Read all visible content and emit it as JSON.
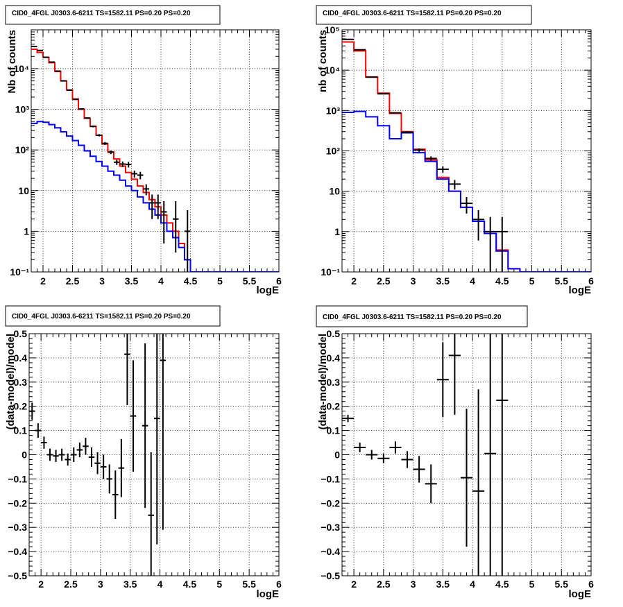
{
  "colors": {
    "total_model": "#ff0000",
    "component_model": "#0000ff",
    "data": "#000000",
    "grid": "#000000"
  },
  "chart_data": [
    {
      "type": "line",
      "title": "CID0_4FGL J0303.6-6211 TS=1582.11 PS=0.20 PS=0.20",
      "xlabel": "logE",
      "ylabel": "Nb of counts",
      "xlim": [
        1.8,
        6.0
      ],
      "ylim": [
        0.1,
        90000
      ],
      "yscale": "log",
      "grid": true,
      "xticks": [
        2,
        2.5,
        3,
        3.5,
        4,
        4.5,
        5,
        5.5,
        6
      ],
      "xtick_labels": [
        "2",
        "2.5",
        "3",
        "3.5",
        "4",
        "4.5",
        "5",
        "5.5",
        "6"
      ],
      "yticks": [
        0.1,
        1,
        10,
        100,
        1000,
        10000
      ],
      "ytick_labels": [
        "10⁻¹",
        "1",
        "10",
        "10²",
        "10³",
        "10⁴"
      ],
      "bin_edges": [
        1.8,
        1.9,
        2.0,
        2.1,
        2.2,
        2.3,
        2.4,
        2.5,
        2.6,
        2.7,
        2.8,
        2.9,
        3.0,
        3.1,
        3.2,
        3.3,
        3.4,
        3.5,
        3.6,
        3.7,
        3.8,
        3.9,
        4.0,
        4.1,
        4.2,
        4.3,
        4.4,
        4.5,
        4.6,
        4.7,
        4.8,
        4.9,
        5.0,
        5.1,
        5.2,
        5.3,
        5.4,
        5.5,
        5.6,
        5.7,
        5.8,
        5.9,
        6.0
      ],
      "series": [
        {
          "values": [
            30000,
            25000,
            19000,
            14000,
            8500,
            5000,
            3000,
            1800,
            1000,
            600,
            380,
            230,
            140,
            90,
            60,
            40,
            28,
            19,
            13,
            9,
            6,
            4,
            2.5,
            1.6,
            1.0,
            0.5,
            0.2,
            0.1,
            0.08,
            0.08,
            0.08,
            0.08,
            0.08,
            0.08,
            0.08,
            0.08,
            0.08,
            0.08,
            0.08,
            0.08,
            0.08,
            0.08
          ]
        },
        {
          "values": [
            450,
            500,
            480,
            420,
            350,
            280,
            220,
            170,
            130,
            95,
            70,
            52,
            40,
            30,
            24,
            18,
            13,
            10,
            7,
            5,
            3.5,
            2.5,
            1.6,
            1.0,
            0.7,
            0.4,
            0.2,
            0.1,
            0.08,
            0.08,
            0.08,
            0.08,
            0.08,
            0.08,
            0.08,
            0.08,
            0.08,
            0.08,
            0.08,
            0.08,
            0.08,
            0.08
          ]
        }
      ],
      "points": {
        "x": [
          1.85,
          1.95,
          2.05,
          2.15,
          2.25,
          2.35,
          2.45,
          2.55,
          2.65,
          2.75,
          2.85,
          2.95,
          3.05,
          3.15,
          3.25,
          3.35,
          3.45,
          3.55,
          3.65,
          3.75,
          3.85,
          3.95,
          4.05,
          4.25,
          4.45
        ],
        "xerr": 0.05,
        "y": [
          35000,
          28000,
          19000,
          14500,
          8700,
          5000,
          2950,
          1750,
          1020,
          610,
          380,
          230,
          145,
          88,
          50,
          45,
          44,
          26,
          24,
          11,
          5,
          5,
          3,
          2,
          1
        ],
        "yerr_low": [
          190,
          170,
          140,
          120,
          90,
          70,
          55,
          42,
          32,
          25,
          20,
          15,
          12,
          9,
          7,
          7,
          7,
          5,
          5,
          3.3,
          3,
          3,
          2.5,
          1.7,
          1
        ],
        "yerr_high": [
          190,
          170,
          140,
          120,
          90,
          70,
          55,
          42,
          32,
          25,
          20,
          15,
          12,
          9,
          7,
          7,
          7,
          5,
          5,
          3.3,
          3,
          3,
          2.5,
          3.5,
          2.3
        ]
      }
    },
    {
      "type": "line",
      "title": "CID0_4FGL J0303.6-6211 TS=1582.11 PS=0.20 PS=0.20",
      "xlabel": "logE",
      "ylabel": "nb of counts",
      "xlim": [
        1.8,
        6.0
      ],
      "ylim": [
        0.1,
        100000
      ],
      "yscale": "log",
      "grid": true,
      "xticks": [
        2,
        2.5,
        3,
        3.5,
        4,
        4.5,
        5,
        5.5,
        6
      ],
      "xtick_labels": [
        "2",
        "2.5",
        "3",
        "3.5",
        "4",
        "4.5",
        "5",
        "5.5",
        "6"
      ],
      "yticks": [
        0.1,
        1,
        10,
        100,
        1000,
        10000,
        100000
      ],
      "ytick_labels": [
        "10⁻¹",
        "1",
        "10",
        "10²",
        "10³",
        "10⁴",
        "10⁵"
      ],
      "bin_edges": [
        1.8,
        2.0,
        2.2,
        2.4,
        2.6,
        2.8,
        3.0,
        3.2,
        3.4,
        3.6,
        3.8,
        4.0,
        4.2,
        4.4,
        4.6,
        4.8,
        5.0,
        5.2,
        5.4,
        5.6,
        5.8,
        6.0
      ],
      "series": [
        {
          "values": [
            50000,
            30000,
            6800,
            2700,
            850,
            300,
            110,
            60,
            22,
            10,
            4,
            1.8,
            0.9,
            0.35,
            0.12,
            0.1,
            0.1,
            0.1,
            0.1,
            0.1,
            0.1
          ]
        },
        {
          "values": [
            900,
            950,
            700,
            420,
            200,
            280,
            90,
            55,
            20,
            10,
            4,
            1.8,
            0.9,
            0.33,
            0.12,
            0.1,
            0.1,
            0.1,
            0.1,
            0.1,
            0.1
          ]
        }
      ],
      "points": {
        "x": [
          1.9,
          2.1,
          2.3,
          2.5,
          2.7,
          2.9,
          3.1,
          3.3,
          3.5,
          3.7,
          3.9,
          4.1,
          4.3,
          4.5
        ],
        "xerr": 0.1,
        "y": [
          58000,
          32000,
          6700,
          2600,
          880,
          290,
          105,
          65,
          35,
          15,
          5,
          2,
          1,
          1
        ],
        "yerr_low": [
          240,
          180,
          82,
          51,
          30,
          17,
          10,
          8,
          6,
          4,
          2.2,
          1.4,
          0.94,
          0.99
        ],
        "yerr_high": [
          240,
          180,
          82,
          51,
          30,
          17,
          10,
          8,
          6,
          4,
          2.2,
          1.4,
          1.3,
          1.3
        ]
      }
    },
    {
      "type": "scatter",
      "title": "CID0_4FGL J0303.6-6211 TS=1582.11 PS=0.20 PS=0.20",
      "xlabel": "logE",
      "ylabel": "(data-model)/model",
      "xlim": [
        1.8,
        6.0
      ],
      "ylim": [
        -0.5,
        0.5
      ],
      "grid": true,
      "xticks": [
        2,
        2.5,
        3,
        3.5,
        4,
        4.5,
        5,
        5.5,
        6
      ],
      "xtick_labels": [
        "2",
        "2.5",
        "3",
        "3.5",
        "4",
        "4.5",
        "5",
        "5.5",
        "6"
      ],
      "yticks": [
        -0.5,
        -0.4,
        -0.3,
        -0.2,
        -0.1,
        0,
        0.1,
        0.2,
        0.3,
        0.4,
        0.5
      ],
      "ytick_labels": [
        "−0.5",
        "−0.4",
        "−0.3",
        "−0.2",
        "−0.1",
        "0",
        "0.1",
        "0.2",
        "0.3",
        "0.4",
        "0.5"
      ],
      "points": {
        "x": [
          1.85,
          1.95,
          2.05,
          2.15,
          2.25,
          2.35,
          2.45,
          2.55,
          2.65,
          2.75,
          2.85,
          2.95,
          3.05,
          3.15,
          3.25,
          3.35,
          3.45,
          3.55,
          3.75,
          3.85,
          3.95,
          4.05
        ],
        "xerr": 0.05,
        "y": [
          0.18,
          0.1,
          0.05,
          0.0,
          -0.005,
          0.0,
          -0.02,
          0.0,
          0.02,
          0.035,
          -0.01,
          -0.035,
          -0.05,
          -0.1,
          -0.165,
          -0.055,
          0.415,
          0.16,
          0.12,
          -0.25,
          0.15,
          0.39
        ],
        "yerr": [
          0.035,
          0.03,
          0.025,
          0.025,
          0.025,
          0.025,
          0.025,
          0.03,
          0.03,
          0.035,
          0.04,
          0.045,
          0.05,
          0.06,
          0.1,
          0.12,
          0.21,
          0.23,
          0.34,
          0.26,
          0.52,
          0.7
        ]
      }
    },
    {
      "type": "scatter",
      "title": "CID0_4FGL J0303.6-6211 TS=1582.11 PS=0.20 PS=0.20",
      "xlabel": "logE",
      "ylabel": "(data-model)/model",
      "xlim": [
        1.8,
        6.0
      ],
      "ylim": [
        -0.5,
        0.5
      ],
      "grid": true,
      "xticks": [
        2,
        2.5,
        3,
        3.5,
        4,
        4.5,
        5,
        5.5,
        6
      ],
      "xtick_labels": [
        "2",
        "2.5",
        "3",
        "3.5",
        "4",
        "4.5",
        "5",
        "5.5",
        "6"
      ],
      "yticks": [
        -0.5,
        -0.4,
        -0.3,
        -0.2,
        -0.1,
        0,
        0.1,
        0.2,
        0.3,
        0.4,
        0.5
      ],
      "ytick_labels": [
        "−0.5",
        "−0.4",
        "−0.3",
        "−0.2",
        "−0.1",
        "0",
        "0.1",
        "0.2",
        "0.3",
        "0.4",
        "0.5"
      ],
      "points": {
        "x": [
          1.9,
          2.1,
          2.3,
          2.5,
          2.7,
          2.9,
          3.1,
          3.3,
          3.5,
          3.7,
          3.9,
          4.1,
          4.3,
          4.5
        ],
        "xerr": 0.1,
        "y": [
          0.15,
          0.03,
          0.0,
          -0.015,
          0.03,
          -0.02,
          -0.06,
          -0.12,
          0.31,
          0.41,
          -0.095,
          -0.15,
          0.005,
          0.225
        ],
        "yerr": [
          0.015,
          0.02,
          0.02,
          0.02,
          0.025,
          0.035,
          0.055,
          0.08,
          0.155,
          0.245,
          0.285,
          0.42,
          0.65,
          0.8
        ]
      }
    }
  ]
}
